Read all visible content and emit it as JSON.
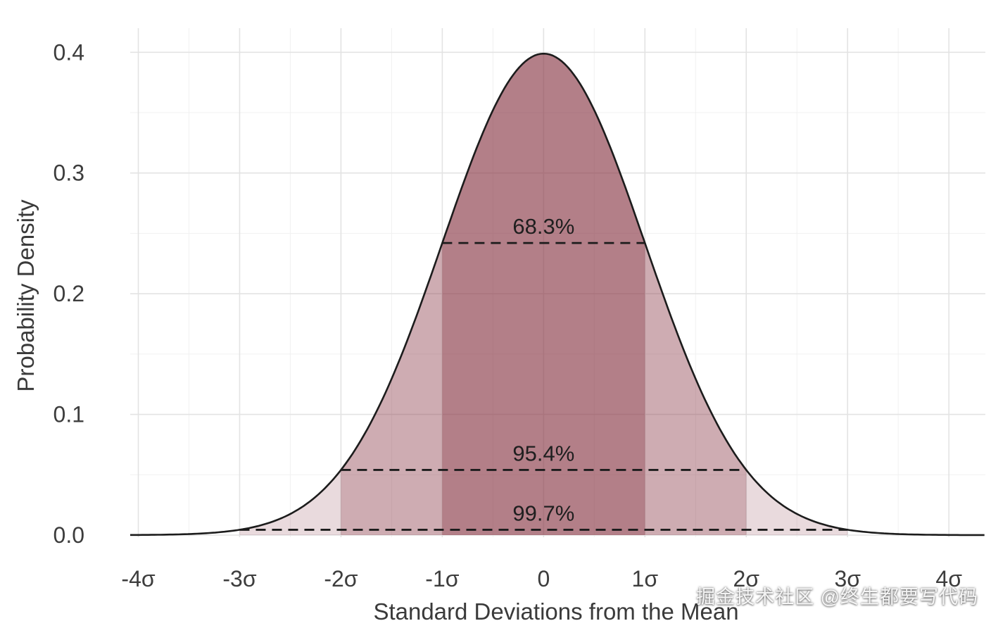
{
  "watermark": "掘金技术社区 @终生都要写代码",
  "chart_data": {
    "type": "area",
    "title": "",
    "xlabel": "Standard Deviations from the Mean",
    "ylabel": "Probability Density",
    "curve": "standard_normal_pdf",
    "peak_density": 0.3989,
    "xlim": [
      -4.08,
      4.36
    ],
    "ylim": [
      0,
      0.42
    ],
    "grid": true,
    "legend": "none",
    "x_ticks": [
      {
        "value": -4,
        "label": "-4σ"
      },
      {
        "value": -3,
        "label": "-3σ"
      },
      {
        "value": -2,
        "label": "-2σ"
      },
      {
        "value": -1,
        "label": "-1σ"
      },
      {
        "value": 0,
        "label": "0"
      },
      {
        "value": 1,
        "label": "1σ"
      },
      {
        "value": 2,
        "label": "2σ"
      },
      {
        "value": 3,
        "label": "3σ"
      },
      {
        "value": 4,
        "label": "4σ"
      }
    ],
    "y_ticks": [
      {
        "value": 0.0,
        "label": "0.0"
      },
      {
        "value": 0.1,
        "label": "0.1"
      },
      {
        "value": 0.2,
        "label": "0.2"
      },
      {
        "value": 0.3,
        "label": "0.3"
      },
      {
        "value": 0.4,
        "label": "0.4"
      }
    ],
    "bands": [
      {
        "name": "within-3-sigma",
        "range": [
          -3,
          3
        ],
        "coverage_label": "99.7%",
        "line_y": 0.0044,
        "fill": "rgba(140,60,72,0.19)"
      },
      {
        "name": "within-2-sigma",
        "range": [
          -2,
          2
        ],
        "coverage_label": "95.4%",
        "line_y": 0.054,
        "fill": "rgba(140,60,72,0.285)"
      },
      {
        "name": "within-1-sigma",
        "range": [
          -1,
          1
        ],
        "coverage_label": "68.3%",
        "line_y": 0.242,
        "fill": "rgba(140,60,72,0.40)"
      }
    ],
    "colors": {
      "curve": "#1c1c1c",
      "dashed_line": "#1c1c1c",
      "grid_major": "#e3e3e3",
      "grid_minor": "#f1f1f1",
      "text": "#3a3a3a",
      "background": "#ffffff"
    }
  }
}
